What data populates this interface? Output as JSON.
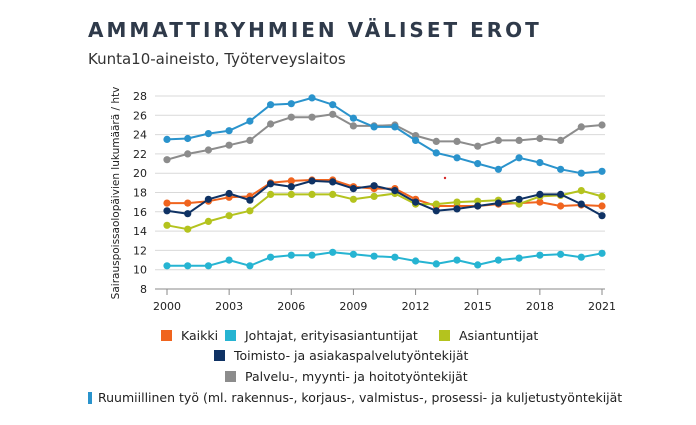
{
  "title": "AMMATTIRYHMIEN VÄLISET EROT",
  "subtitle": "Kunta10-aineisto, Työterveyslaitos",
  "chart_data": {
    "type": "line",
    "ylabel": "Sairauspoissaolopäivien lukumäärä / htv",
    "xlabel": "",
    "x": [
      2000,
      2001,
      2002,
      2003,
      2004,
      2005,
      2006,
      2007,
      2008,
      2009,
      2010,
      2011,
      2012,
      2013,
      2014,
      2015,
      2016,
      2017,
      2018,
      2019,
      2020,
      2021
    ],
    "xticks": [
      "2000",
      "2003",
      "2006",
      "2009",
      "2012",
      "2015",
      "2018",
      "2021"
    ],
    "ylim": [
      8,
      28
    ],
    "yticks": [
      "8",
      "10",
      "12",
      "14",
      "16",
      "18",
      "20",
      "22",
      "24",
      "26",
      "28"
    ],
    "grid": "horizontal",
    "series": [
      {
        "name": "Kaikki",
        "color": "#f0641e",
        "values": [
          16.9,
          16.9,
          17.1,
          17.5,
          17.6,
          19.0,
          19.2,
          19.3,
          19.3,
          18.6,
          18.4,
          18.4,
          17.3,
          16.6,
          16.6,
          16.6,
          16.8,
          16.9,
          17.0,
          16.6,
          16.7,
          16.6
        ]
      },
      {
        "name": "Johtajat, erityisasiantuntijat",
        "color": "#26b4d2",
        "values": [
          10.4,
          10.4,
          10.4,
          11.0,
          10.4,
          11.3,
          11.5,
          11.5,
          11.8,
          11.6,
          11.4,
          11.3,
          10.9,
          10.6,
          11.0,
          10.5,
          11.0,
          11.2,
          11.5,
          11.6,
          11.3,
          11.7
        ]
      },
      {
        "name": "Asiantuntijat",
        "color": "#b4c31e",
        "values": [
          14.6,
          14.2,
          15.0,
          15.6,
          16.1,
          17.8,
          17.8,
          17.8,
          17.8,
          17.3,
          17.6,
          17.9,
          16.8,
          16.8,
          17.0,
          17.1,
          17.2,
          16.8,
          17.6,
          17.7,
          18.2,
          17.6
        ]
      },
      {
        "name": "Toimisto- ja asiakaspalvelutyöntekijät",
        "color": "#0f3264",
        "values": [
          16.1,
          15.8,
          17.3,
          17.9,
          17.2,
          18.9,
          18.6,
          19.2,
          19.1,
          18.4,
          18.7,
          18.2,
          17.0,
          16.1,
          16.3,
          16.6,
          16.9,
          17.3,
          17.8,
          17.8,
          16.8,
          15.6
        ]
      },
      {
        "name": "Palvelu-, myynti- ja hoitotyöntekijät",
        "color": "#8c8c8c",
        "values": [
          21.4,
          22.0,
          22.4,
          22.9,
          23.4,
          25.1,
          25.8,
          25.8,
          26.1,
          24.9,
          24.9,
          25.0,
          23.9,
          23.3,
          23.3,
          22.8,
          23.4,
          23.4,
          23.6,
          23.4,
          24.8,
          25.0
        ]
      },
      {
        "name": "Ruumiillinen työ (ml. rakennus-, korjaus-, valmistus-, prosessi- ja kuljetustyöntekijät",
        "color": "#2a93cc",
        "values": [
          23.5,
          23.6,
          24.1,
          24.4,
          25.4,
          27.1,
          27.2,
          27.8,
          27.1,
          25.7,
          24.8,
          24.8,
          23.4,
          22.1,
          21.6,
          21.0,
          20.4,
          21.6,
          21.1,
          20.4,
          20.0,
          20.2
        ]
      }
    ]
  }
}
